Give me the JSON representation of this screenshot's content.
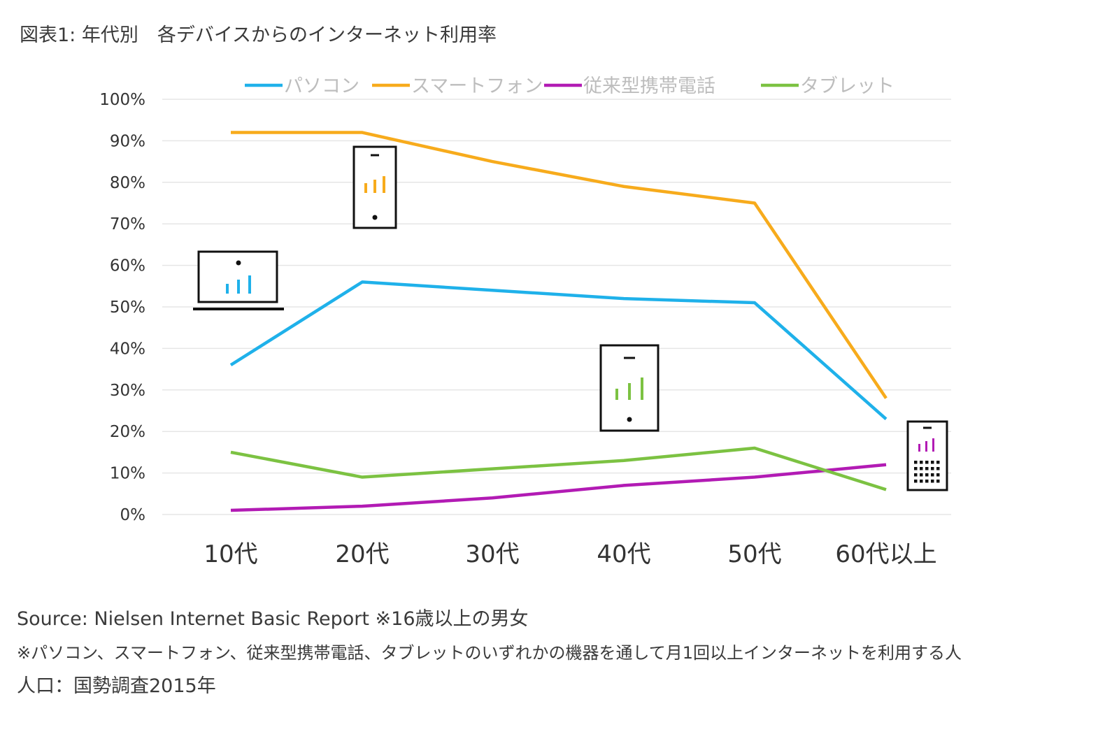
{
  "title": "図表1: 年代別　各デバイスからのインターネット利用率",
  "chart_data": {
    "type": "line",
    "categories": [
      "10代",
      "20代",
      "30代",
      "40代",
      "50代",
      "60代以上"
    ],
    "ylim": [
      0,
      100
    ],
    "yticks": [
      "0%",
      "10%",
      "20%",
      "30%",
      "40%",
      "50%",
      "60%",
      "70%",
      "80%",
      "90%",
      "100%"
    ],
    "ytick_values": [
      0,
      10,
      20,
      30,
      40,
      50,
      60,
      70,
      80,
      90,
      100
    ],
    "grid": true,
    "legend_position": "top",
    "series": [
      {
        "name": "パソコン",
        "color": "#1fb1ea",
        "values": [
          36,
          56,
          54,
          52,
          51,
          23
        ]
      },
      {
        "name": "スマートフォン",
        "color": "#f7ab1c",
        "values": [
          92,
          92,
          85,
          79,
          75,
          28
        ]
      },
      {
        "name": "従来型携帯電話",
        "color": "#b21bb4",
        "values": [
          1,
          2,
          4,
          7,
          9,
          12
        ]
      },
      {
        "name": "タブレット",
        "color": "#7cc242",
        "values": [
          15,
          9,
          11,
          13,
          16,
          6
        ]
      }
    ]
  },
  "icons": [
    {
      "name": "laptop-icon",
      "color": "#1fb1ea"
    },
    {
      "name": "smartphone-icon",
      "color": "#f7ab1c"
    },
    {
      "name": "tablet-icon",
      "color": "#7cc242"
    },
    {
      "name": "feature-phone-icon",
      "color": "#b21bb4"
    }
  ],
  "notes": {
    "source": "Source: Nielsen Internet Basic Report ※16歳以上の男女",
    "definition": "※パソコン、スマートフォン、従来型携帯電話、タブレットのいずれかの機器を通して月1回以上インターネットを利用する人",
    "population": "人口：国勢調査2015年"
  }
}
